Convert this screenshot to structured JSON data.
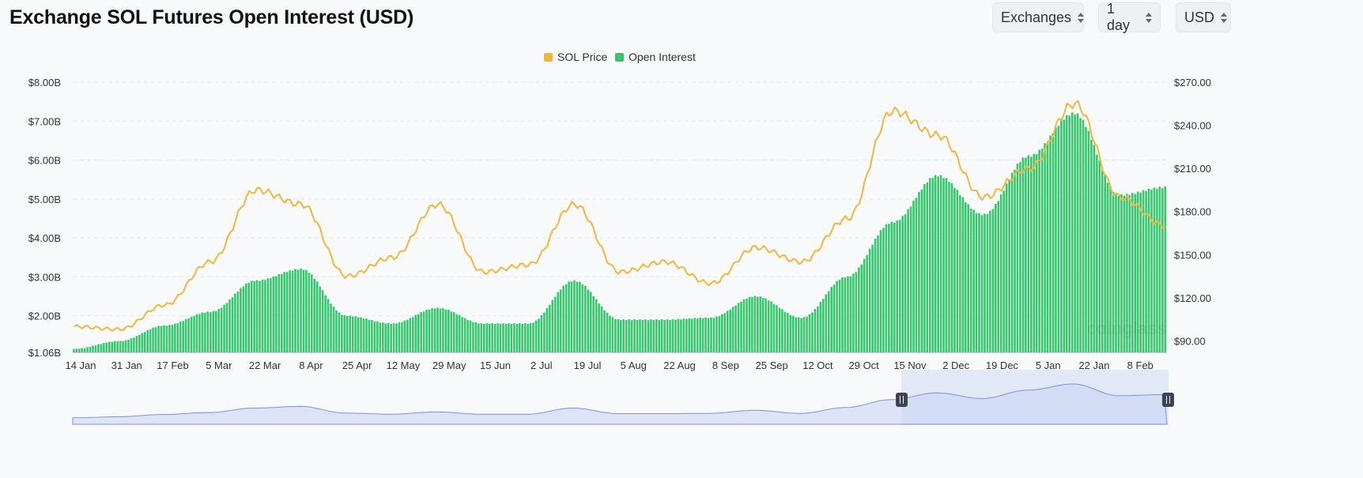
{
  "header": {
    "title": "Exchange SOL Futures Open Interest (USD)",
    "exchange_select": "Exchanges",
    "interval_select": "1 day",
    "currency_select": "USD"
  },
  "colors": {
    "price": "#f0b73c",
    "open_interest": "#34c76b",
    "navigator_fill": "#c9d3f5",
    "navigator_line": "#7d91db"
  },
  "watermark": "coinglass",
  "chart_data": {
    "type": "bar",
    "legend": [
      "SOL Price",
      "Open Interest"
    ],
    "legend_position": "top-center",
    "grid": true,
    "x_ticks": [
      "14 Jan",
      "31 Jan",
      "17 Feb",
      "5 Mar",
      "22 Mar",
      "8 Apr",
      "25 Apr",
      "12 May",
      "29 May",
      "15 Jun",
      "2 Jul",
      "19 Jul",
      "5 Aug",
      "22 Aug",
      "8 Sep",
      "25 Sep",
      "12 Oct",
      "29 Oct",
      "15 Nov",
      "2 Dec",
      "19 Dec",
      "5 Jan",
      "22 Jan",
      "8 Feb"
    ],
    "y_left_ticks": [
      "$1.06B",
      "$2.00B",
      "$3.00B",
      "$4.00B",
      "$5.00B",
      "$6.00B",
      "$7.00B",
      "$8.00B"
    ],
    "y_right_ticks": [
      "$90.00",
      "$120.00",
      "$150.00",
      "$180.00",
      "$210.00",
      "$240.00",
      "$270.00"
    ],
    "y_left_range": [
      1.06,
      8.0
    ],
    "y_right_range": [
      82,
      270
    ],
    "series": [
      {
        "name": "Open Interest",
        "type": "bar",
        "axis": "left",
        "unit": "B USD",
        "x": [
          "14 Jan",
          "31 Jan",
          "17 Feb",
          "5 Mar",
          "22 Mar",
          "8 Apr",
          "25 Apr",
          "12 May",
          "29 May",
          "15 Jun",
          "2 Jul",
          "19 Jul",
          "5 Aug",
          "22 Aug",
          "8 Sep",
          "25 Sep",
          "12 Oct",
          "29 Oct",
          "15 Nov",
          "2 Dec",
          "19 Dec",
          "5 Jan",
          "22 Jan",
          "8 Feb",
          "17 Feb"
        ],
        "values": [
          1.15,
          1.35,
          1.75,
          2.1,
          2.9,
          3.2,
          2.0,
          1.8,
          2.2,
          1.8,
          1.8,
          2.9,
          1.9,
          1.9,
          1.95,
          2.5,
          1.95,
          3.0,
          4.4,
          5.6,
          4.6,
          6.1,
          7.2,
          5.1,
          5.3
        ]
      },
      {
        "name": "SOL Price",
        "type": "line",
        "axis": "right",
        "unit": "USD",
        "x": [
          "14 Jan",
          "31 Jan",
          "17 Feb",
          "5 Mar",
          "22 Mar",
          "8 Apr",
          "25 Apr",
          "12 May",
          "29 May",
          "15 Jun",
          "2 Jul",
          "19 Jul",
          "5 Aug",
          "22 Aug",
          "8 Sep",
          "25 Sep",
          "12 Oct",
          "29 Oct",
          "15 Nov",
          "2 Dec",
          "19 Dec",
          "5 Jan",
          "22 Jan",
          "8 Feb",
          "17 Feb"
        ],
        "values": [
          100,
          98,
          115,
          145,
          195,
          185,
          135,
          148,
          185,
          138,
          143,
          185,
          138,
          145,
          130,
          155,
          145,
          175,
          250,
          233,
          190,
          210,
          255,
          190,
          170
        ]
      }
    ]
  }
}
